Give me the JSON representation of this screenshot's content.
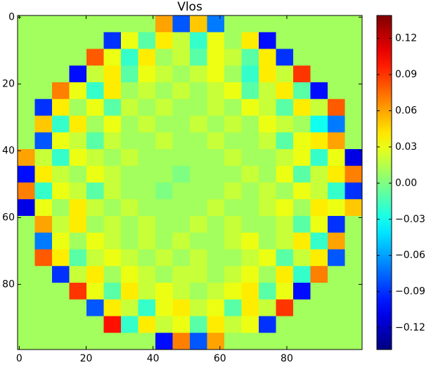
{
  "chart_data": {
    "type": "heatmap",
    "title": "Vlos",
    "colormap": "jet",
    "clim": [
      -0.138,
      0.139
    ],
    "cticks": [
      {
        "value": -0.12,
        "label": "−0.12"
      },
      {
        "value": -0.09,
        "label": "−0.09"
      },
      {
        "value": -0.06,
        "label": "−0.06"
      },
      {
        "value": -0.03,
        "label": "−0.03"
      },
      {
        "value": 0,
        "label": "0.00"
      },
      0.03,
      0.06,
      0.09,
      0.12
    ],
    "xlim": [
      -0.5,
      102.5
    ],
    "ylim": [
      99.5,
      -0.5
    ],
    "xticks": [
      0,
      20,
      40,
      60,
      80
    ],
    "yticks": [
      0,
      20,
      40,
      60,
      80
    ],
    "z": [
      [
        0.01,
        0.01,
        0.01,
        0.01,
        0.01,
        0.01,
        0.01,
        0.01,
        0.06,
        -0.08,
        0.05,
        -0.07,
        0.01,
        0.01,
        0.01,
        0.01,
        0.01,
        0.01,
        0.01,
        0.01
      ],
      [
        0.01,
        0.01,
        0.01,
        0.01,
        0.01,
        -0.09,
        0.03,
        -0.01,
        0.04,
        0.02,
        -0.02,
        0.03,
        0.01,
        0.04,
        -0.1,
        0.01,
        0.01,
        0.01,
        0.01,
        0.01
      ],
      [
        0.01,
        0.01,
        0.01,
        0.01,
        0.08,
        0.03,
        -0.02,
        0.04,
        0.01,
        0.02,
        -0.01,
        0.03,
        0.02,
        -0.01,
        0.04,
        -0.09,
        0.01,
        0.01,
        0.01,
        0.01
      ],
      [
        0.01,
        0.01,
        0.01,
        -0.1,
        0.02,
        0.04,
        -0.01,
        0.03,
        0.02,
        0.01,
        0.02,
        0.03,
        0.01,
        -0.02,
        0.04,
        0.02,
        0.09,
        0.01,
        0.01,
        0.01
      ],
      [
        0.01,
        0.01,
        0.07,
        0.03,
        -0.02,
        0.04,
        0.01,
        0.02,
        0.01,
        0.02,
        0.01,
        0.02,
        0.03,
        -0.01,
        0.02,
        0.04,
        -0.01,
        -0.1,
        0.01,
        0.01
      ],
      [
        0.01,
        -0.09,
        0.04,
        0.01,
        0.03,
        -0.01,
        0.02,
        0.01,
        0.02,
        0.01,
        0.01,
        0.02,
        0.01,
        0.03,
        0.02,
        -0.01,
        0.04,
        0.02,
        0.08,
        0.01
      ],
      [
        0.01,
        0.05,
        -0.02,
        0.04,
        0.01,
        0.03,
        0.01,
        0.02,
        0.01,
        0.01,
        0.02,
        0.01,
        0.02,
        0.01,
        0.03,
        0.02,
        0.01,
        -0.03,
        -0.07,
        0.01
      ],
      [
        0.01,
        -0.08,
        0.03,
        0.02,
        -0.01,
        0.02,
        0.01,
        0.01,
        0.02,
        0.01,
        0.01,
        0.02,
        0.01,
        0.01,
        0.02,
        -0.01,
        0.03,
        0.04,
        0.06,
        0.01
      ],
      [
        0.06,
        0.02,
        -0.02,
        0.03,
        0.02,
        0.01,
        0.02,
        0.01,
        0.01,
        0.01,
        0.01,
        0.01,
        0.02,
        0.01,
        0.01,
        0.02,
        0.03,
        -0.02,
        0.03,
        -0.11
      ],
      [
        -0.1,
        0.04,
        0.02,
        0.01,
        0.03,
        0.02,
        0.01,
        0.01,
        0.01,
        0.0,
        0.01,
        0.01,
        0.01,
        0.02,
        0.01,
        0.03,
        -0.01,
        0.02,
        0.04,
        0.07
      ],
      [
        0.07,
        -0.02,
        0.03,
        0.02,
        -0.01,
        0.02,
        0.01,
        0.01,
        0.0,
        0.01,
        0.01,
        0.01,
        0.02,
        0.01,
        0.02,
        0.01,
        0.03,
        0.02,
        -0.02,
        -0.09
      ],
      [
        -0.11,
        0.03,
        0.01,
        0.04,
        0.02,
        0.01,
        0.02,
        0.01,
        0.01,
        0.01,
        0.01,
        0.02,
        0.01,
        0.01,
        0.02,
        0.03,
        0.01,
        0.04,
        0.03,
        0.05
      ],
      [
        0.01,
        0.06,
        0.02,
        0.04,
        0.01,
        0.02,
        0.01,
        0.02,
        0.01,
        0.01,
        0.02,
        0.01,
        0.02,
        0.01,
        0.01,
        0.02,
        -0.01,
        0.03,
        -0.09,
        0.01
      ],
      [
        0.01,
        -0.07,
        0.03,
        0.01,
        0.03,
        0.02,
        0.01,
        0.02,
        0.01,
        0.02,
        0.01,
        0.01,
        0.02,
        0.03,
        0.01,
        0.02,
        0.04,
        -0.02,
        0.06,
        0.01
      ],
      [
        0.01,
        0.08,
        0.04,
        -0.01,
        0.02,
        0.03,
        0.02,
        0.01,
        0.02,
        0.01,
        0.02,
        0.01,
        0.01,
        0.02,
        0.03,
        -0.01,
        0.02,
        0.04,
        -0.08,
        0.01
      ],
      [
        0.01,
        0.01,
        -0.09,
        0.02,
        0.04,
        0.01,
        0.03,
        0.02,
        0.01,
        0.02,
        0.02,
        0.01,
        0.02,
        0.03,
        0.01,
        0.04,
        -0.02,
        0.07,
        0.01,
        0.01
      ],
      [
        0.01,
        0.01,
        0.01,
        0.09,
        0.03,
        -0.01,
        0.04,
        0.02,
        0.03,
        0.02,
        0.01,
        0.02,
        0.03,
        0.04,
        -0.01,
        0.03,
        -0.1,
        0.01,
        0.01,
        0.01
      ],
      [
        0.01,
        0.01,
        0.01,
        0.01,
        -0.08,
        0.04,
        0.02,
        -0.02,
        0.03,
        0.04,
        0.02,
        0.03,
        -0.01,
        0.04,
        0.02,
        0.09,
        0.01,
        0.01,
        0.01,
        0.01
      ],
      [
        0.01,
        0.01,
        0.01,
        0.01,
        0.01,
        0.1,
        -0.02,
        0.04,
        0.02,
        0.03,
        -0.01,
        0.04,
        0.02,
        0.03,
        -0.09,
        0.01,
        0.01,
        0.01,
        0.01,
        0.01
      ],
      [
        0.01,
        0.01,
        0.01,
        0.01,
        0.01,
        0.01,
        0.01,
        0.01,
        -0.1,
        0.07,
        -0.08,
        0.06,
        0.01,
        0.01,
        0.01,
        0.01,
        0.01,
        0.01,
        0.01,
        0.01
      ]
    ]
  }
}
